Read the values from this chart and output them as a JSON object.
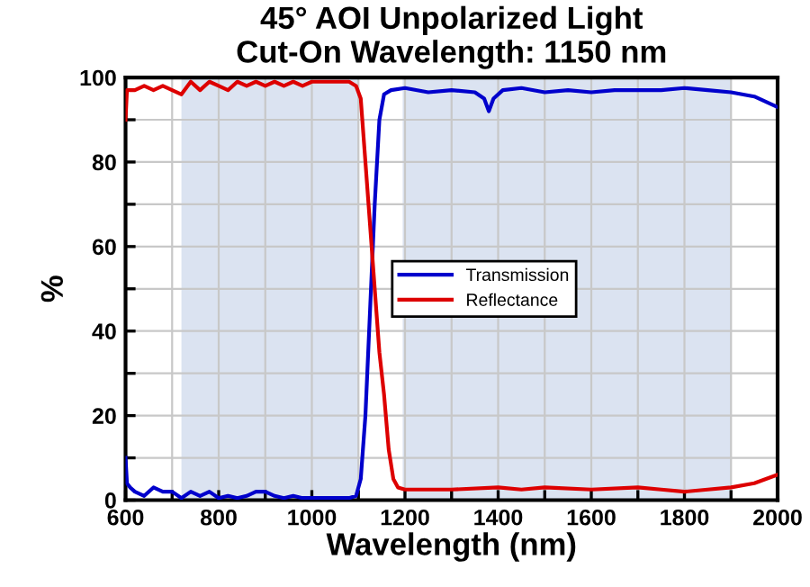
{
  "chart_data": {
    "type": "line",
    "title": "45° AOI Unpolarized Light\nCut-On Wavelength: 1150 nm",
    "xlabel": "Wavelength (nm)",
    "ylabel": "%",
    "xlim": [
      600,
      2000
    ],
    "xticks": [
      600,
      {
        "value": 700,
        "label": null
      },
      800,
      {
        "value": 900,
        "label": null
      },
      1000,
      {
        "value": 1100,
        "label": null
      },
      1200,
      {
        "value": 1300,
        "label": null
      },
      1400,
      {
        "value": 1500,
        "label": null
      },
      1600,
      {
        "value": 1700,
        "label": null
      },
      1800,
      {
        "value": 1900,
        "label": null
      },
      2000
    ],
    "ylim": [
      0,
      100
    ],
    "yticks": [
      0,
      {
        "value": 10,
        "label": null
      },
      20,
      {
        "value": 30,
        "label": null
      },
      40,
      {
        "value": 50,
        "label": null
      },
      60,
      {
        "value": 70,
        "label": null
      },
      80,
      {
        "value": 90,
        "label": null
      },
      100
    ],
    "grid": true,
    "legend": "center",
    "marker": "none",
    "line_style": "solid",
    "bands": [
      {
        "axis": "x",
        "from": 720,
        "to": 1100,
        "color": "#dbe3f1"
      },
      {
        "axis": "x",
        "from": 1195,
        "to": 1900,
        "color": "#dbe3f1"
      }
    ],
    "series": [
      {
        "name": "Transmission",
        "color": "#0000cc",
        "x": [
          600,
          603,
          610,
          620,
          640,
          660,
          680,
          700,
          720,
          740,
          760,
          780,
          800,
          820,
          840,
          860,
          880,
          900,
          920,
          940,
          960,
          980,
          1000,
          1020,
          1040,
          1060,
          1080,
          1095,
          1105,
          1115,
          1125,
          1135,
          1145,
          1155,
          1170,
          1200,
          1250,
          1300,
          1350,
          1370,
          1380,
          1390,
          1410,
          1450,
          1500,
          1550,
          1600,
          1650,
          1700,
          1750,
          1800,
          1850,
          1900,
          1950,
          2000
        ],
        "values": [
          10,
          4,
          3,
          2,
          1,
          3,
          2,
          2,
          0.5,
          2,
          1,
          2,
          0.5,
          1,
          0.5,
          1,
          2,
          2,
          1,
          0.5,
          1,
          0.5,
          0.5,
          0.5,
          0.5,
          0.5,
          0.5,
          1,
          5,
          20,
          45,
          70,
          90,
          96,
          97,
          97.5,
          96.5,
          97,
          96.5,
          95,
          92,
          95,
          97,
          97.5,
          96.5,
          97,
          96.5,
          97,
          97,
          97,
          97.5,
          97,
          96.5,
          95.5,
          93
        ]
      },
      {
        "name": "Reflectance",
        "color": "#dd0000",
        "x": [
          600,
          603,
          620,
          640,
          660,
          680,
          700,
          720,
          740,
          760,
          780,
          800,
          820,
          840,
          860,
          880,
          900,
          920,
          940,
          960,
          980,
          1000,
          1020,
          1040,
          1060,
          1080,
          1095,
          1105,
          1115,
          1125,
          1135,
          1145,
          1155,
          1165,
          1175,
          1185,
          1200,
          1300,
          1400,
          1450,
          1500,
          1600,
          1700,
          1750,
          1800,
          1850,
          1900,
          1950,
          2000
        ],
        "values": [
          90,
          97,
          97,
          98,
          97,
          98,
          97,
          96,
          99,
          97,
          99,
          98,
          97,
          99,
          98,
          99,
          98,
          99,
          98,
          99,
          98,
          99,
          99,
          99,
          99,
          99,
          98,
          95,
          80,
          65,
          50,
          35,
          25,
          12,
          5,
          3,
          2.5,
          2.5,
          3,
          2.5,
          3,
          2.5,
          3,
          2.5,
          2,
          2.5,
          3,
          4,
          6
        ]
      }
    ]
  }
}
